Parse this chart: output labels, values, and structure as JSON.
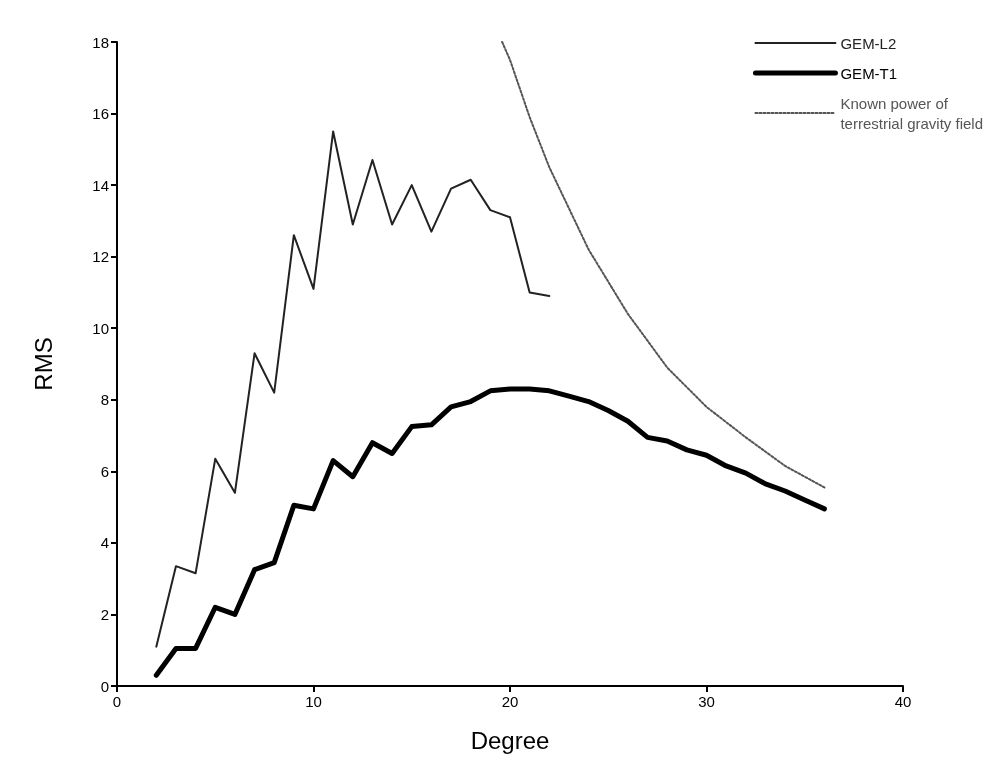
{
  "chart_data": {
    "type": "line",
    "xlabel": "Degree",
    "ylabel": "RMS",
    "xlim": [
      0,
      40
    ],
    "xticks": [
      0,
      10,
      20,
      30,
      40
    ],
    "ylim": [
      0,
      18
    ],
    "yticks": [
      0,
      2,
      4,
      6,
      8,
      10,
      12,
      14,
      16,
      18
    ],
    "grid": false,
    "legend": "top right",
    "marker": "none",
    "series": [
      {
        "name": "GEM-L2",
        "color": "#222222",
        "line_style": "solid",
        "x": [
          2,
          3,
          4,
          5,
          6,
          7,
          8,
          9,
          10,
          11,
          12,
          13,
          14,
          15,
          16,
          17,
          18,
          19,
          20,
          21,
          22
        ],
        "values": [
          1.1,
          3.35,
          3.15,
          6.35,
          5.4,
          9.3,
          8.2,
          12.6,
          11.1,
          15.5,
          12.9,
          14.7,
          12.9,
          14.0,
          12.7,
          13.9,
          14.15,
          13.3,
          13.1,
          11.0,
          10.9
        ]
      },
      {
        "name": "GEM-T1",
        "color": "#000000",
        "line_style": "solid",
        "x": [
          2,
          3,
          4,
          5,
          6,
          7,
          8,
          9,
          10,
          11,
          12,
          13,
          14,
          15,
          16,
          17,
          18,
          19,
          20,
          21,
          22,
          23,
          24,
          25,
          26,
          27,
          28,
          29,
          30,
          31,
          32,
          33,
          34,
          35,
          36
        ],
        "values": [
          0.3,
          1.05,
          1.05,
          2.2,
          2.0,
          3.25,
          3.45,
          5.05,
          4.95,
          6.3,
          5.85,
          6.8,
          6.5,
          7.25,
          7.3,
          7.8,
          7.95,
          8.25,
          8.3,
          8.3,
          8.25,
          8.1,
          7.95,
          7.7,
          7.4,
          6.95,
          6.85,
          6.6,
          6.45,
          6.15,
          5.95,
          5.65,
          5.45,
          5.2,
          4.95
        ]
      },
      {
        "name": "Known power of\nterrestrial gravity field",
        "color": "#555555",
        "line_style": "dotted",
        "x": [
          19.6,
          20,
          21,
          22,
          24,
          26,
          28,
          30,
          32,
          34,
          36
        ],
        "values": [
          18,
          17.5,
          15.9,
          14.5,
          12.2,
          10.4,
          8.9,
          7.8,
          6.95,
          6.15,
          5.55
        ]
      }
    ]
  }
}
